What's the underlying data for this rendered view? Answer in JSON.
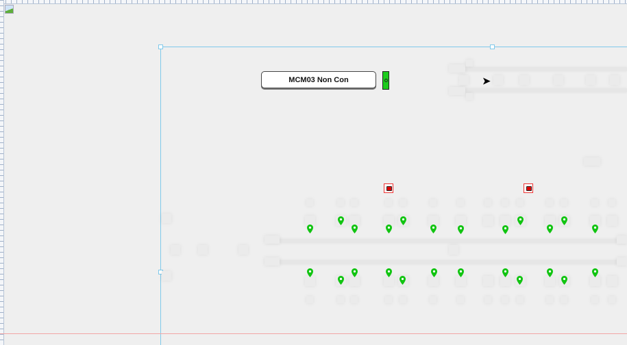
{
  "canvas": {
    "label": "MCM03 Non Con",
    "status_color": "#1dcc1d",
    "marker_color": "#11c411",
    "camera_color": "#dd0000",
    "icons": [
      "broken-image-icon",
      "status-indicator-icon",
      "chevron-right-icon",
      "camera-icon",
      "map-pin-icon"
    ]
  }
}
